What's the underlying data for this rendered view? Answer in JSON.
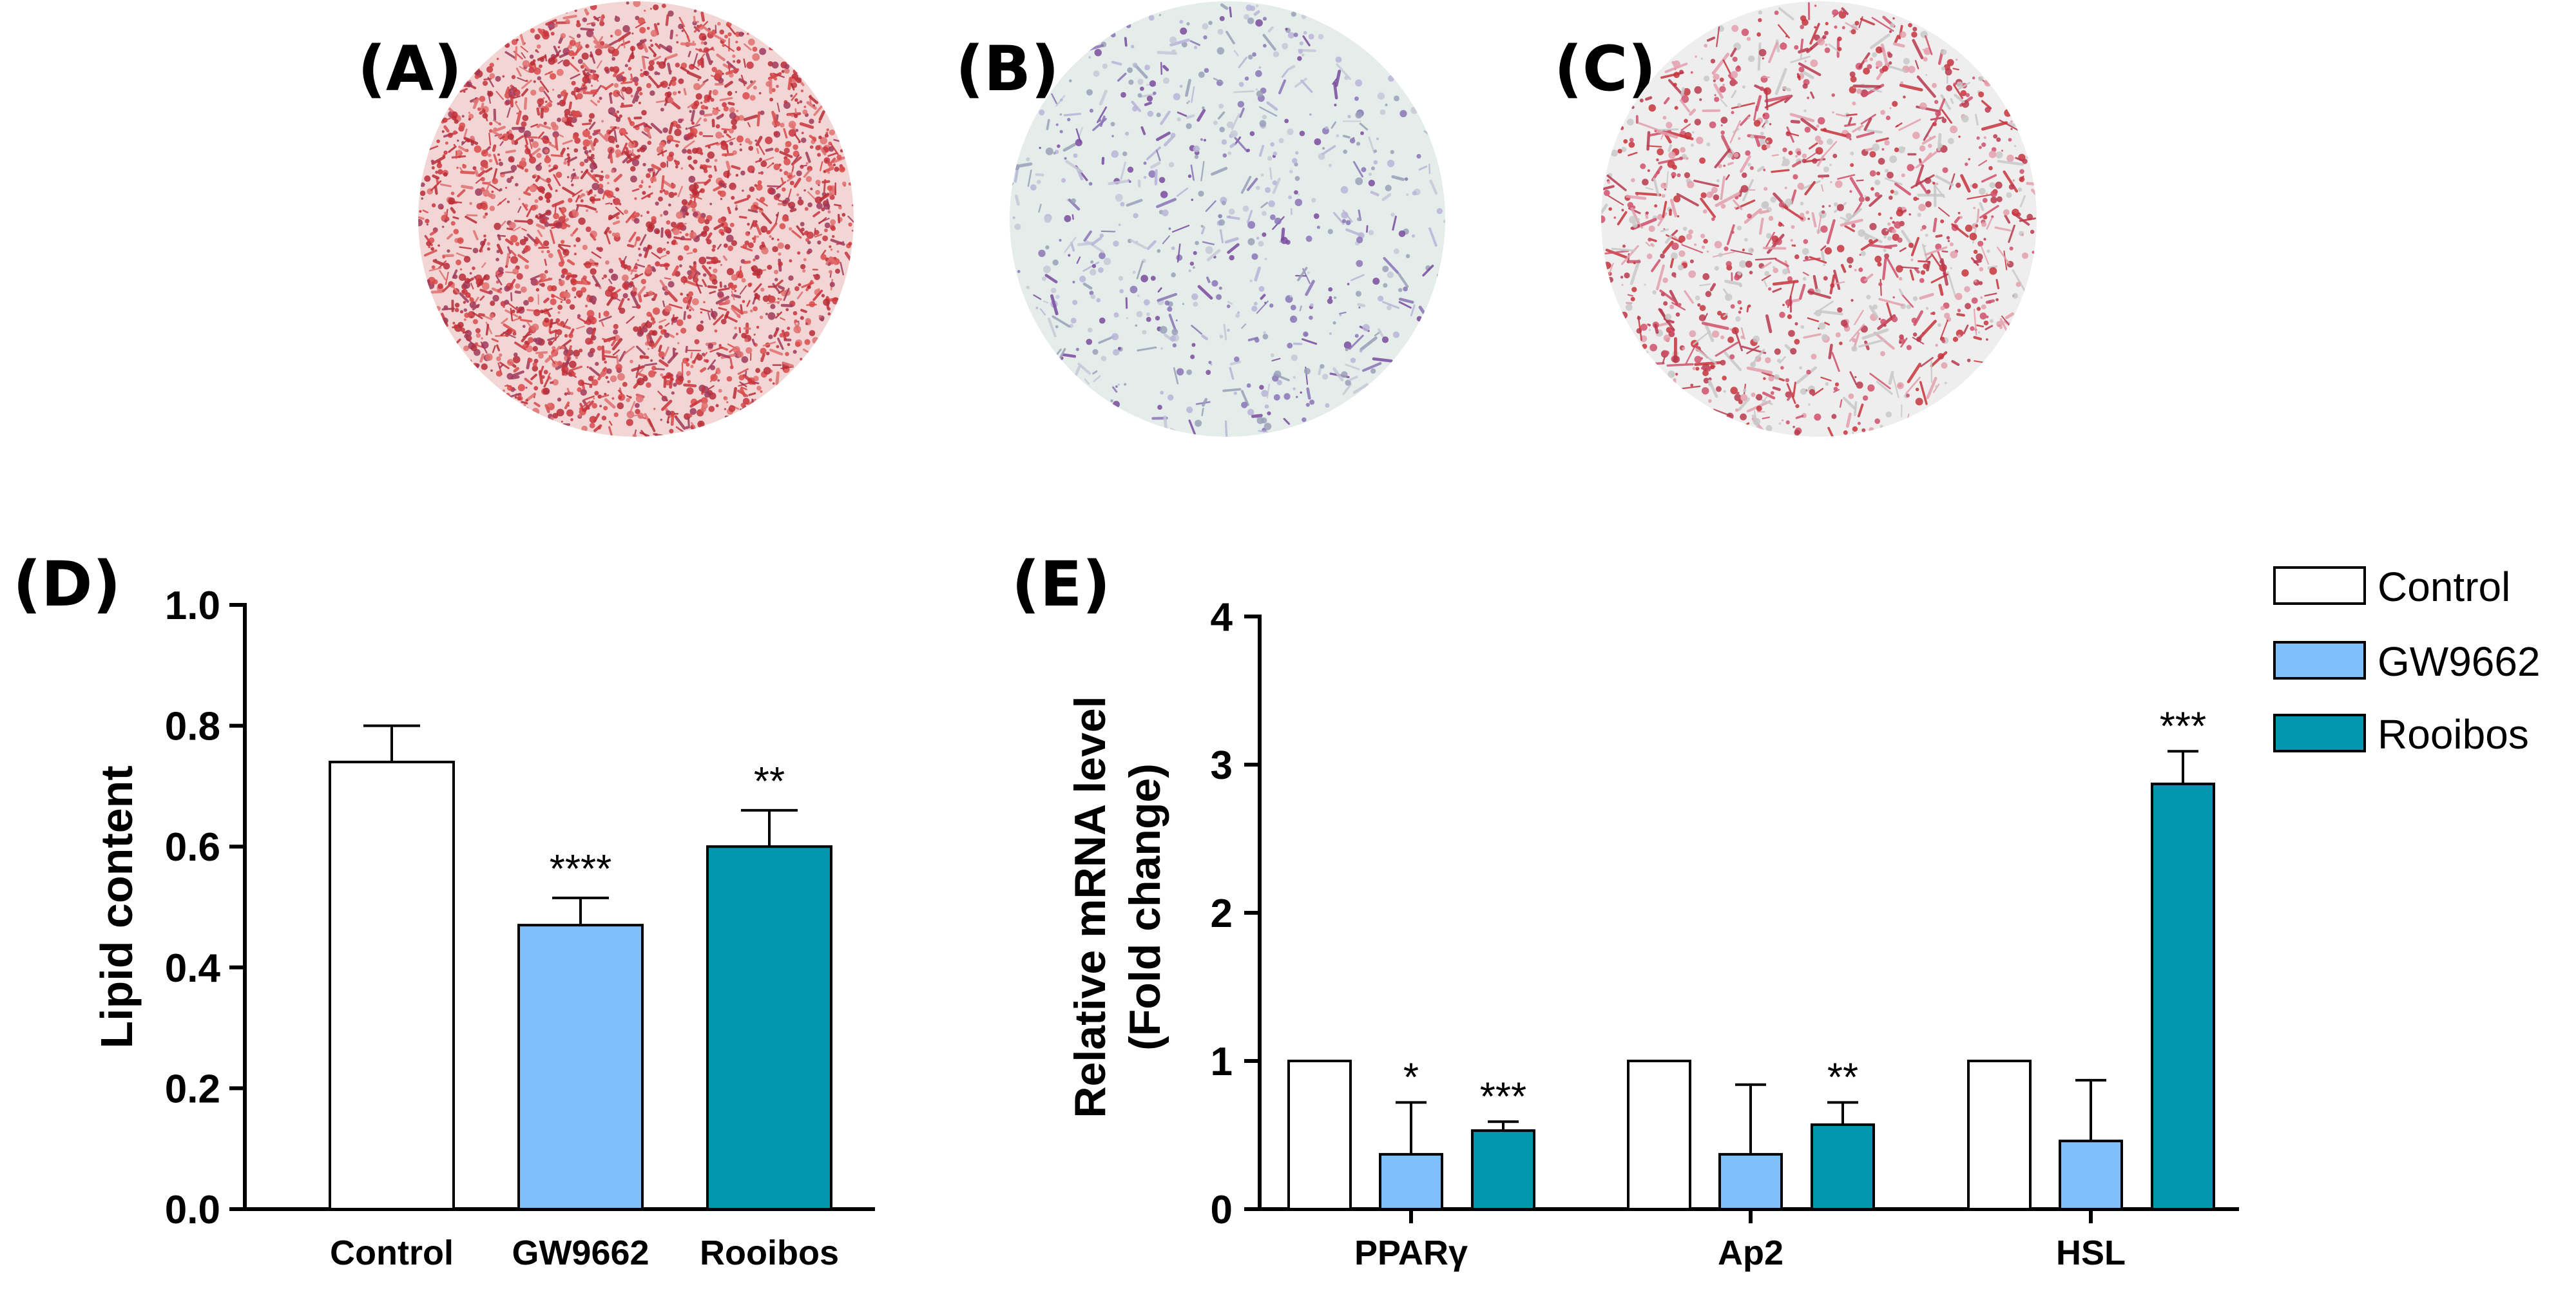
{
  "colors": {
    "control": "#ffffff",
    "gw9662": "#7ec0fb",
    "rooibos": "#0096ae",
    "stain_red": "#c8343c",
    "stain_purple": "#7a4a9e",
    "dish_bg": "#e6eeea"
  },
  "panels": {
    "a": {
      "label": "(A)"
    },
    "b": {
      "label": "(B)"
    },
    "c": {
      "label": "(C)"
    },
    "d": {
      "label": "(D)"
    },
    "e": {
      "label": "(E)"
    }
  },
  "chart_data": [
    {
      "id": "D",
      "type": "bar",
      "title": "",
      "xlabel": "",
      "ylabel": "Lipid content",
      "ylim": [
        0,
        1.0
      ],
      "yticks": [
        0.0,
        0.2,
        0.4,
        0.6,
        0.8,
        1.0
      ],
      "ytick_labels": [
        "0.0",
        "0.2",
        "0.4",
        "0.6",
        "0.8",
        "1.0"
      ],
      "categories": [
        "Control",
        "GW9662",
        "Rooibos"
      ],
      "values": [
        0.74,
        0.47,
        0.6
      ],
      "errors": [
        0.06,
        0.045,
        0.06
      ],
      "significance": [
        "",
        "****",
        "**"
      ]
    },
    {
      "id": "E",
      "type": "bar",
      "title": "",
      "xlabel": "",
      "ylabel": [
        "Relative mRNA level",
        "(Fold change)"
      ],
      "ylim": [
        0,
        4
      ],
      "yticks": [
        0,
        1,
        2,
        3,
        4
      ],
      "ytick_labels": [
        "0",
        "1",
        "2",
        "3",
        "4"
      ],
      "categories": [
        "PPARγ",
        "Ap2",
        "HSL"
      ],
      "series": [
        {
          "name": "Control",
          "values": [
            1.0,
            1.0,
            1.0
          ],
          "errors": [
            0,
            0,
            0
          ],
          "significance": [
            "",
            "",
            ""
          ]
        },
        {
          "name": "GW9662",
          "values": [
            0.37,
            0.37,
            0.46
          ],
          "errors": [
            0.35,
            0.47,
            0.41
          ],
          "significance": [
            "*",
            "",
            ""
          ]
        },
        {
          "name": "Rooibos",
          "values": [
            0.53,
            0.57,
            2.87
          ],
          "errors": [
            0.06,
            0.15,
            0.22
          ],
          "significance": [
            "***",
            "**",
            "***"
          ]
        }
      ],
      "legend": {
        "position": "top-right",
        "entries": [
          "Control",
          "GW9662",
          "Rooibos"
        ]
      }
    }
  ]
}
